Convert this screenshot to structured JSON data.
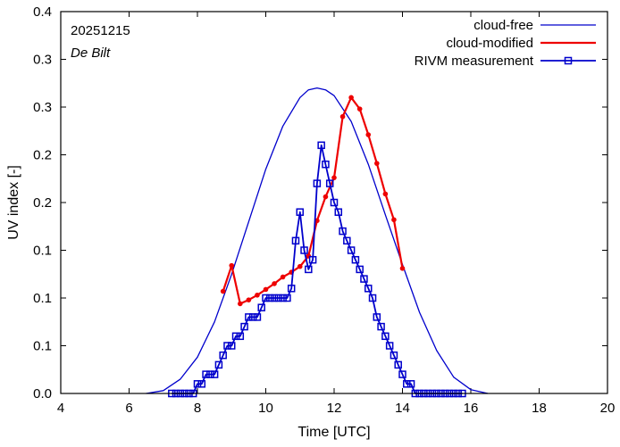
{
  "chart_data": {
    "type": "line",
    "date_label": "20251215",
    "location_label": "De Bilt",
    "xlabel": "Time  [UTC]",
    "ylabel": "UV index  [-]",
    "xlim": [
      4,
      20
    ],
    "ylim": [
      0,
      0.4
    ],
    "xticks": [
      4,
      6,
      8,
      10,
      12,
      14,
      16,
      18,
      20
    ],
    "yticks": [
      {
        "value": 0.0,
        "label": "0.0"
      },
      {
        "value": 0.05,
        "label": "0.1"
      },
      {
        "value": 0.1,
        "label": "0.1"
      },
      {
        "value": 0.15,
        "label": "0.1"
      },
      {
        "value": 0.2,
        "label": "0.2"
      },
      {
        "value": 0.25,
        "label": "0.2"
      },
      {
        "value": 0.3,
        "label": "0.3"
      },
      {
        "value": 0.35,
        "label": "0.3"
      },
      {
        "value": 0.4,
        "label": "0.4"
      }
    ],
    "series": [
      {
        "name": "cloud-free",
        "color": "#0000cc",
        "style": "line",
        "x": [
          6.5,
          7.0,
          7.5,
          8.0,
          8.5,
          9.0,
          9.5,
          10.0,
          10.5,
          11.0,
          11.25,
          11.5,
          11.75,
          12.0,
          12.5,
          13.0,
          13.5,
          14.0,
          14.5,
          15.0,
          15.5,
          16.0,
          16.5
        ],
        "y": [
          0.0,
          0.003,
          0.015,
          0.038,
          0.075,
          0.125,
          0.18,
          0.235,
          0.28,
          0.31,
          0.318,
          0.32,
          0.318,
          0.312,
          0.285,
          0.24,
          0.187,
          0.135,
          0.085,
          0.045,
          0.017,
          0.004,
          0.0
        ]
      },
      {
        "name": "cloud-modified",
        "color": "#ee0000",
        "style": "line-dot",
        "x": [
          8.75,
          9.0,
          9.25,
          9.5,
          9.75,
          10.0,
          10.25,
          10.5,
          10.75,
          11.0,
          11.25,
          11.5,
          11.75,
          12.0,
          12.25,
          12.5,
          12.75,
          13.0,
          13.25,
          13.5,
          13.75,
          14.0
        ],
        "y": [
          0.107,
          0.134,
          0.094,
          0.098,
          0.103,
          0.109,
          0.115,
          0.122,
          0.127,
          0.133,
          0.144,
          0.181,
          0.206,
          0.226,
          0.29,
          0.31,
          0.298,
          0.271,
          0.241,
          0.209,
          0.182,
          0.131
        ]
      },
      {
        "name": "RIVM measurement",
        "color": "#0000cc",
        "style": "line-square",
        "x": [
          7.25,
          7.375,
          7.5,
          7.625,
          7.75,
          7.875,
          8.0,
          8.125,
          8.25,
          8.375,
          8.5,
          8.625,
          8.75,
          8.875,
          9.0,
          9.125,
          9.25,
          9.375,
          9.5,
          9.625,
          9.75,
          9.875,
          10.0,
          10.125,
          10.25,
          10.375,
          10.5,
          10.625,
          10.75,
          10.875,
          11.0,
          11.125,
          11.25,
          11.375,
          11.5,
          11.625,
          11.75,
          11.875,
          12.0,
          12.125,
          12.25,
          12.375,
          12.5,
          12.625,
          12.75,
          12.875,
          13.0,
          13.125,
          13.25,
          13.375,
          13.5,
          13.625,
          13.75,
          13.875,
          14.0,
          14.125,
          14.25,
          14.375,
          14.5,
          14.625,
          14.75,
          14.875,
          15.0,
          15.125,
          15.25,
          15.375,
          15.5,
          15.625,
          15.75
        ],
        "y": [
          0.0,
          0.0,
          0.0,
          0.0,
          0.0,
          0.0,
          0.01,
          0.01,
          0.02,
          0.02,
          0.02,
          0.03,
          0.04,
          0.05,
          0.05,
          0.06,
          0.06,
          0.07,
          0.08,
          0.08,
          0.08,
          0.09,
          0.1,
          0.1,
          0.1,
          0.1,
          0.1,
          0.1,
          0.11,
          0.16,
          0.19,
          0.15,
          0.13,
          0.14,
          0.22,
          0.26,
          0.24,
          0.22,
          0.2,
          0.19,
          0.17,
          0.16,
          0.15,
          0.14,
          0.13,
          0.12,
          0.11,
          0.1,
          0.08,
          0.07,
          0.06,
          0.05,
          0.04,
          0.03,
          0.02,
          0.01,
          0.01,
          0.0,
          0.0,
          0.0,
          0.0,
          0.0,
          0.0,
          0.0,
          0.0,
          0.0,
          0.0,
          0.0,
          0.0
        ]
      }
    ],
    "legend_position": "top-right",
    "grid": false
  }
}
